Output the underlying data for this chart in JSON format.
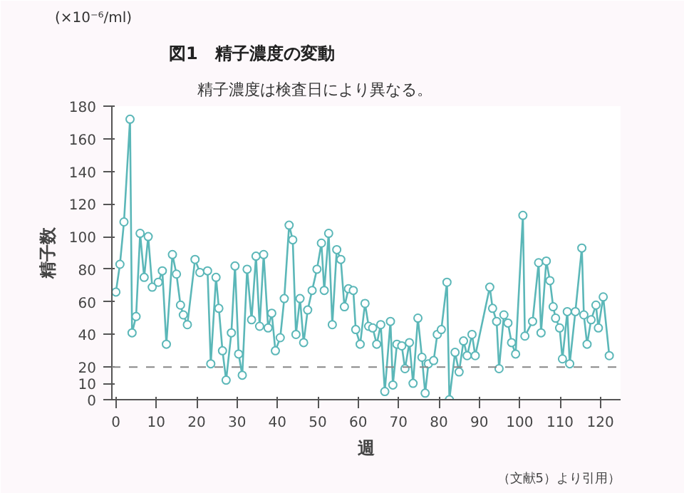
{
  "chart_data": {
    "type": "line",
    "title": "図1　精子濃度の変動",
    "subtitle": "精子濃度は検査日により異なる。",
    "xlabel": "週",
    "ylabel": "精子数",
    "annotations": [
      "(×10⁻⁶/ml)",
      "（文献5）より引用）"
    ],
    "x": [
      0,
      1,
      2,
      3.5,
      4,
      5,
      6,
      7,
      8,
      9,
      10.5,
      11.5,
      12.5,
      14,
      15,
      16,
      16.7,
      17.7,
      19.6,
      20.8,
      22.7,
      23.5,
      24.8,
      25.5,
      26.4,
      27.3,
      28.6,
      29.5,
      30.4,
      31.3,
      32.5,
      33.6,
      34.7,
      35.6,
      36.6,
      37.7,
      38.6,
      39.5,
      40.7,
      41.7,
      42.9,
      43.8,
      44.6,
      45.6,
      46.5,
      47.5,
      48.6,
      49.8,
      50.9,
      51.6,
      52.7,
      53.6,
      54.7,
      55.7,
      56.6,
      57.6,
      58.8,
      59.4,
      60.5,
      61.7,
      62.6,
      63.6,
      64.6,
      65.6,
      66.6,
      68,
      68.6,
      69.6,
      70.8,
      71.6,
      72.7,
      73.6,
      74.8,
      75.8,
      76.6,
      77.4,
      78.7,
      79.6,
      80.6,
      82,
      82.6,
      84,
      85,
      86.1,
      87,
      88.2,
      89,
      92.6,
      93.3,
      94.3,
      94.9,
      96.1,
      97.1,
      98,
      99,
      100.8,
      101.3,
      103.2,
      104.7,
      105.3,
      106.6,
      107.5,
      108.3,
      108.9,
      109.9,
      110.6,
      111.8,
      112.4,
      113.8,
      115.4,
      115.9,
      116.7,
      117.7,
      118.9,
      119.5,
      120.7,
      122.2
    ],
    "series": [
      {
        "color": "#5bb7b8",
        "values": [
          66,
          83,
          109,
          172,
          41,
          51,
          102,
          75,
          100,
          69,
          72,
          79,
          34,
          89,
          77,
          58,
          52,
          46,
          86,
          78,
          79,
          22,
          75,
          56,
          30,
          12,
          41,
          82,
          28,
          15,
          80,
          49,
          88,
          45,
          89,
          44,
          53,
          30,
          38,
          62,
          107,
          98,
          40,
          62,
          35,
          55,
          67,
          80,
          96,
          67,
          102,
          46,
          92,
          86,
          57,
          68,
          67,
          43,
          34,
          59,
          45,
          44,
          34,
          46,
          5,
          48,
          9,
          34,
          33,
          19,
          35,
          10,
          50,
          26,
          4,
          22,
          24,
          40,
          43,
          72,
          0,
          29,
          17,
          36,
          27,
          40,
          27,
          69,
          56,
          48,
          19,
          52,
          47,
          35,
          28,
          113,
          39,
          48,
          84,
          41,
          85,
          73,
          57,
          50,
          44,
          25,
          54,
          22,
          54,
          93,
          52,
          34,
          49,
          58,
          44,
          63,
          27
        ]
      }
    ],
    "marker": "circle",
    "line_style": "solid",
    "grid": false,
    "xlim": [
      -1,
      125
    ],
    "ylim": [
      0,
      180
    ],
    "xticks": [
      0,
      10,
      20,
      30,
      40,
      50,
      60,
      70,
      80,
      90,
      100,
      110,
      120
    ],
    "yticks": [
      0,
      10,
      20,
      40,
      60,
      80,
      100,
      120,
      140,
      160,
      180
    ],
    "ref_lines": [
      {
        "axis": "y",
        "value": 20,
        "label": null,
        "color": "#888888",
        "line_style": "dashed"
      }
    ]
  }
}
